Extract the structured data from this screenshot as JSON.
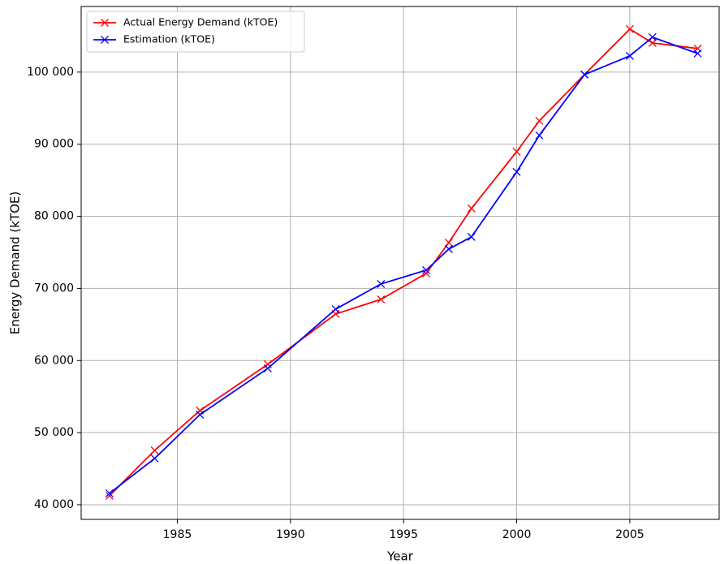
{
  "chart_data": {
    "type": "line",
    "xlabel": "Year",
    "ylabel": "Energy Demand (kTOE)",
    "x": [
      1982,
      1984,
      1986,
      1989,
      1992,
      1994,
      1996,
      1997,
      1998,
      2000,
      2001,
      2003,
      2005,
      2006,
      2008
    ],
    "series": [
      {
        "name": "Actual Energy Demand (kTOE)",
        "color": "#ff0000",
        "values": [
          41240,
          47540,
          53060,
          59480,
          66450,
          68480,
          72080,
          76360,
          81090,
          88970,
          93250,
          99660,
          105970,
          104050,
          103270
        ]
      },
      {
        "name": "Estimation (kTOE)",
        "color": "#0000ff",
        "values": [
          41580,
          46420,
          52500,
          58910,
          67130,
          70620,
          72530,
          75460,
          77150,
          86160,
          91230,
          99660,
          102250,
          104840,
          102590
        ]
      }
    ],
    "xlim": [
      1980.75,
      2008.95
    ],
    "xticks": [
      1985,
      1990,
      1995,
      2000,
      2005
    ],
    "ylim": [
      37970,
      109100
    ],
    "yticks": [
      {
        "value": 40000,
        "label": "40 000"
      },
      {
        "value": 50000,
        "label": "50 000"
      },
      {
        "value": 60000,
        "label": "60 000"
      },
      {
        "value": 70000,
        "label": "70 000"
      },
      {
        "value": 80000,
        "label": "80 000"
      },
      {
        "value": 90000,
        "label": "90 000"
      },
      {
        "value": 100000,
        "label": "100 000"
      }
    ],
    "grid": true,
    "legend": "upper left",
    "marker": "x"
  }
}
